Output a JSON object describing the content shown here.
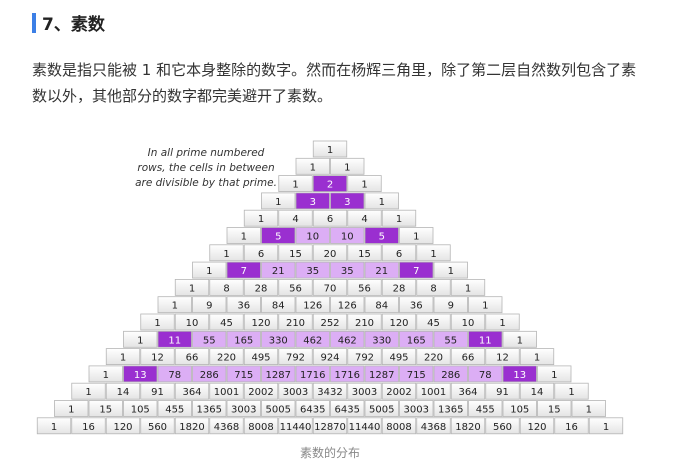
{
  "header": {
    "title": "7、素数"
  },
  "paragraph": "素数是指只能被 1 和它本身整除的数字。然而在杨辉三角里，除了第二层自然数列包含了素数以外，其他部分的数字都完美避开了素数。",
  "figure": {
    "annotation": [
      "In all prime numbered",
      "rows, the cells in between",
      "are divisible by that prime."
    ],
    "triangle": {
      "rows": [
        [
          1
        ],
        [
          1,
          1
        ],
        [
          1,
          2,
          1
        ],
        [
          1,
          3,
          3,
          1
        ],
        [
          1,
          4,
          6,
          4,
          1
        ],
        [
          1,
          5,
          10,
          10,
          5,
          1
        ],
        [
          1,
          6,
          15,
          20,
          15,
          6,
          1
        ],
        [
          1,
          7,
          21,
          35,
          35,
          21,
          7,
          1
        ],
        [
          1,
          8,
          28,
          56,
          70,
          56,
          28,
          8,
          1
        ],
        [
          1,
          9,
          36,
          84,
          126,
          126,
          84,
          36,
          9,
          1
        ],
        [
          1,
          10,
          45,
          120,
          210,
          252,
          210,
          120,
          45,
          10,
          1
        ],
        [
          1,
          11,
          55,
          165,
          330,
          462,
          462,
          330,
          165,
          55,
          11,
          1
        ],
        [
          1,
          12,
          66,
          220,
          495,
          792,
          924,
          792,
          495,
          220,
          66,
          12,
          1
        ],
        [
          1,
          13,
          78,
          286,
          715,
          1287,
          1716,
          1716,
          1287,
          715,
          286,
          78,
          13,
          1
        ],
        [
          1,
          14,
          91,
          364,
          1001,
          2002,
          3003,
          3432,
          3003,
          2002,
          1001,
          364,
          91,
          14,
          1
        ],
        [
          1,
          15,
          105,
          455,
          1365,
          3003,
          5005,
          6435,
          6435,
          5005,
          3003,
          1365,
          455,
          105,
          15,
          1
        ],
        [
          1,
          16,
          120,
          560,
          1820,
          4368,
          8008,
          11440,
          12870,
          11440,
          8008,
          4368,
          1820,
          560,
          120,
          16,
          1
        ]
      ]
    },
    "caption": "素数的分布"
  }
}
